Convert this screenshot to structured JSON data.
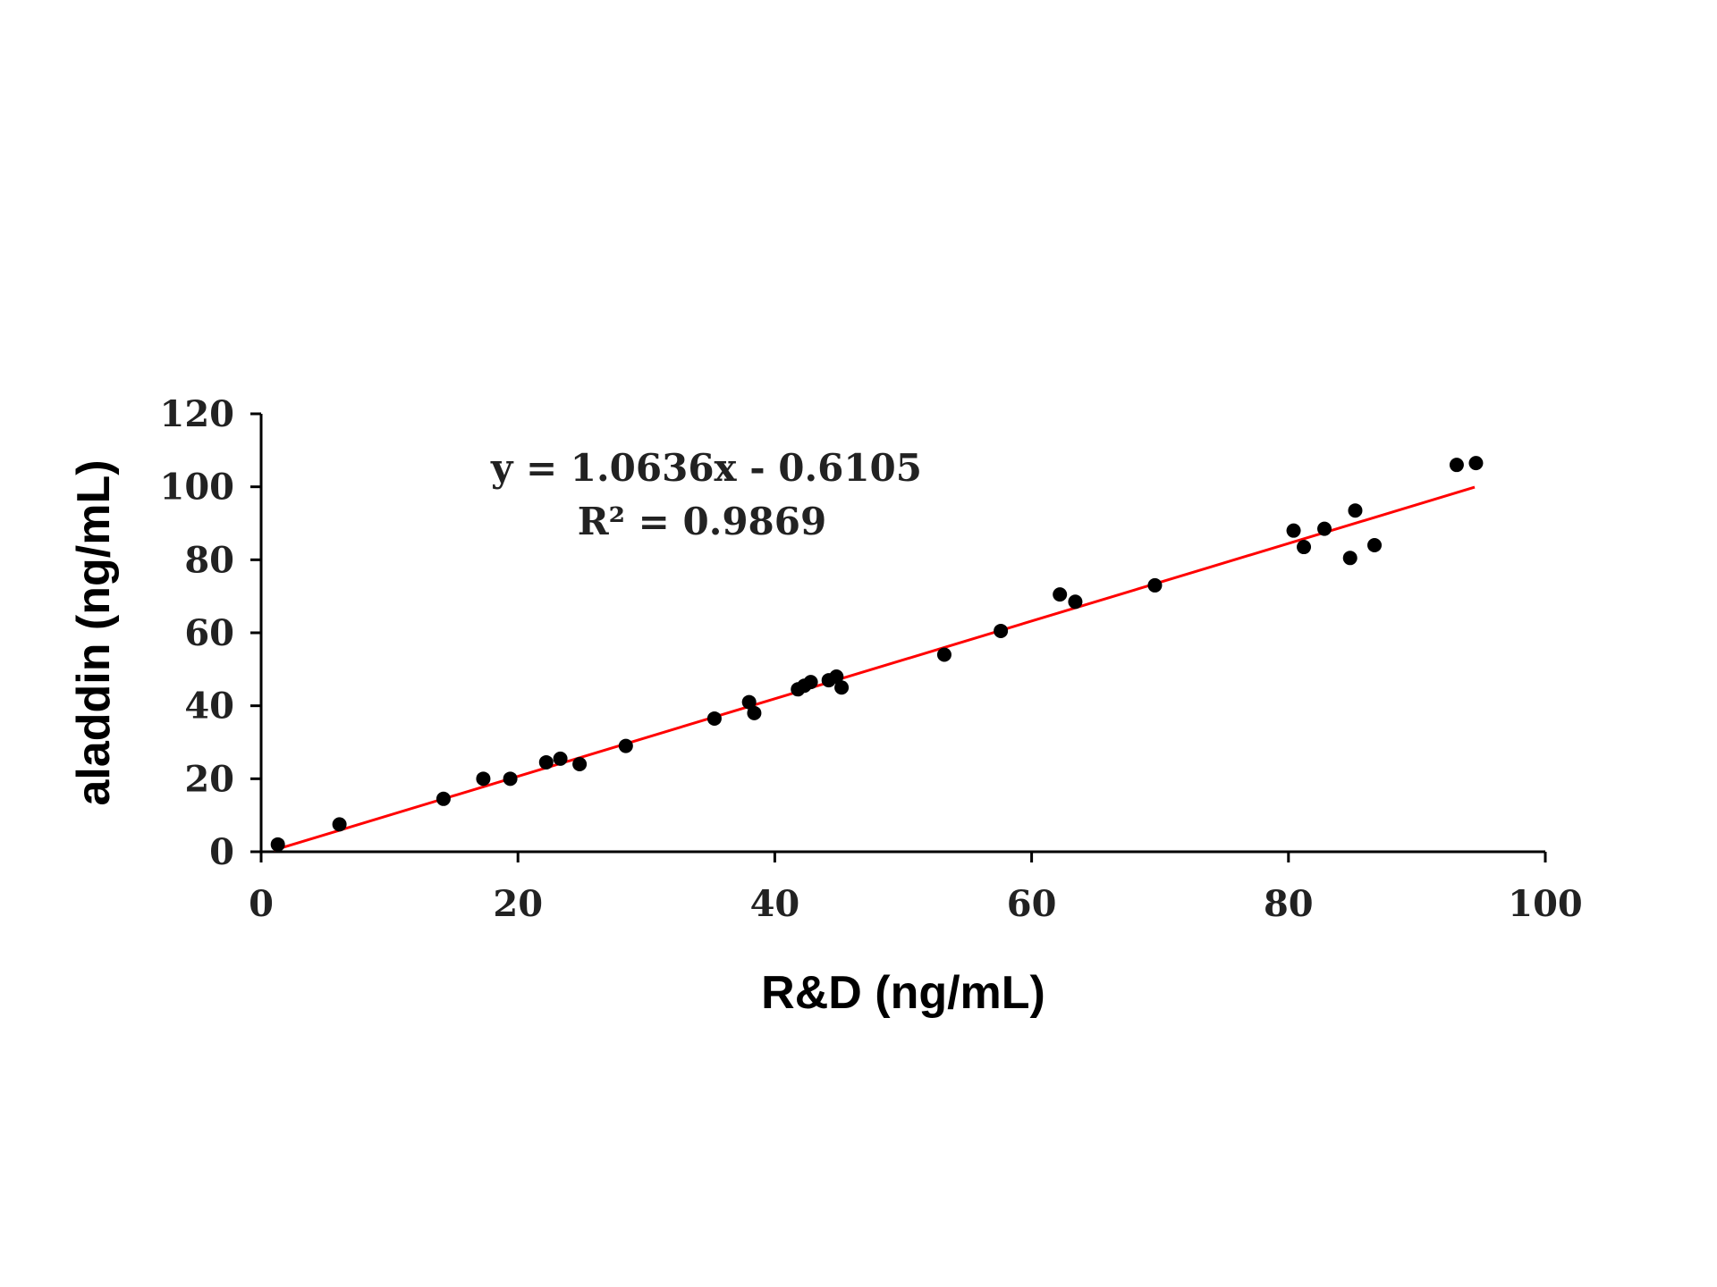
{
  "chart_data": {
    "type": "scatter",
    "xlabel": "R&D (ng/mL)",
    "ylabel": "aladdin (ng/mL)",
    "xlim": [
      0,
      100
    ],
    "ylim": [
      0,
      120
    ],
    "xticks": [
      "0",
      "20",
      "40",
      "60",
      "80",
      "100"
    ],
    "yticks": [
      "0",
      "20",
      "40",
      "60",
      "80",
      "100",
      "120"
    ],
    "grid": false,
    "legend": "none",
    "annotation": {
      "equation": "y = 1.0636x - 0.6105",
      "r2_label": "R² = 0.9869"
    },
    "trendline": {
      "slope": 1.0636,
      "intercept": -0.6105,
      "x_range": [
        1,
        94.5
      ],
      "color": "#ff0000"
    },
    "point_color": "#000000",
    "series": [
      {
        "x": [
          1.3,
          6.1,
          14.2,
          17.3,
          19.4,
          22.2,
          23.3,
          24.8,
          28.4,
          35.3,
          38.0,
          38.4,
          41.8,
          42.3,
          42.8,
          44.2,
          44.8,
          45.2,
          53.2,
          57.6,
          62.2,
          63.4,
          69.6,
          80.4,
          81.2,
          82.8,
          84.8,
          85.2,
          86.7,
          93.1,
          94.6
        ],
        "y": [
          2.0,
          7.5,
          14.5,
          20.0,
          20.0,
          24.5,
          25.5,
          24.0,
          29.0,
          36.5,
          41.0,
          38.0,
          44.5,
          45.5,
          46.5,
          47.0,
          48.0,
          45.0,
          54.0,
          60.5,
          70.5,
          68.5,
          73.0,
          88.0,
          83.5,
          88.5,
          80.5,
          93.5,
          84.0,
          106.0,
          106.5
        ]
      }
    ]
  }
}
